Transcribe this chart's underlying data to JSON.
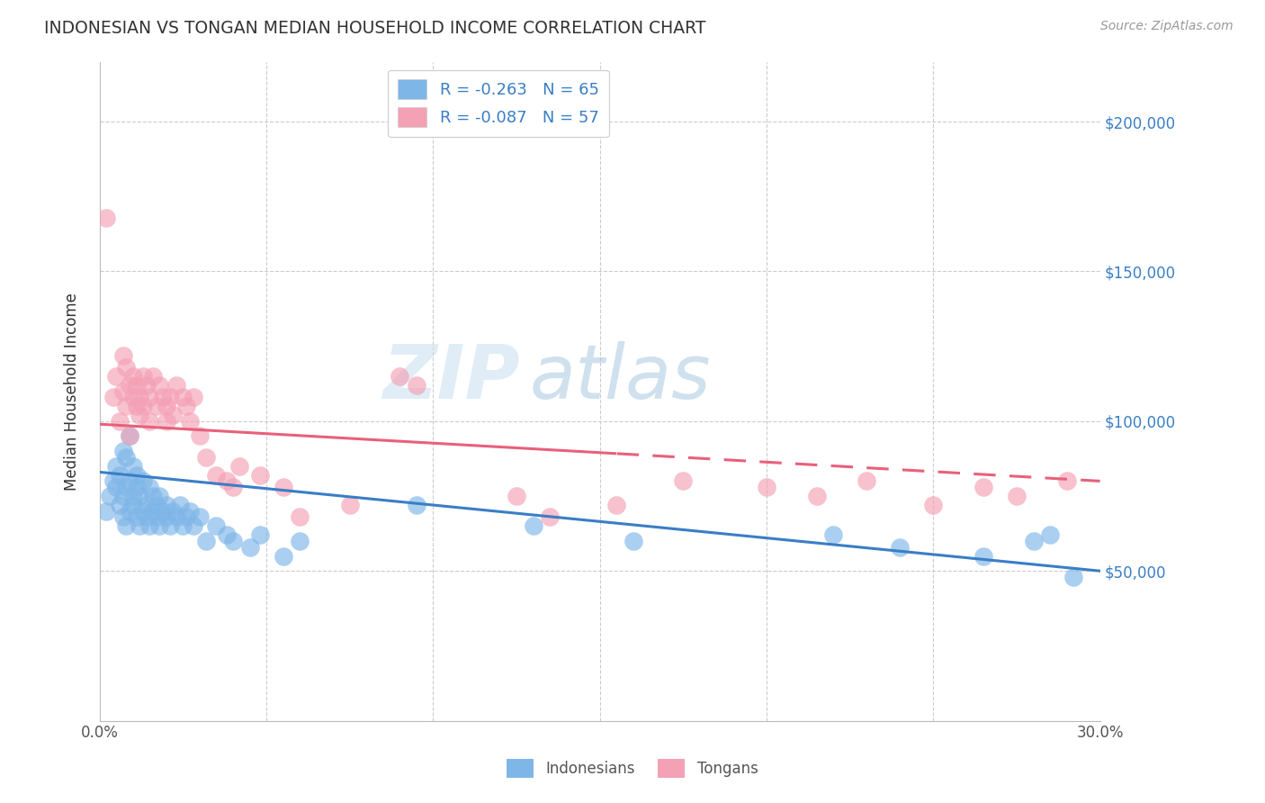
{
  "title": "INDONESIAN VS TONGAN MEDIAN HOUSEHOLD INCOME CORRELATION CHART",
  "source": "Source: ZipAtlas.com",
  "ylabel": "Median Household Income",
  "y_ticks": [
    0,
    50000,
    100000,
    150000,
    200000
  ],
  "y_tick_labels": [
    "",
    "$50,000",
    "$100,000",
    "$150,000",
    "$200,000"
  ],
  "x_ticks": [
    0.0,
    0.05,
    0.1,
    0.15,
    0.2,
    0.25,
    0.3
  ],
  "xlim": [
    0.0,
    0.3
  ],
  "ylim": [
    0,
    220000
  ],
  "blue_color": "#7EB6E8",
  "pink_color": "#F4A0B5",
  "blue_line_color": "#3A7EC6",
  "pink_line_color": "#E8607A",
  "legend_label_1": "R = -0.263   N = 65",
  "legend_label_2": "R = -0.087   N = 57",
  "watermark_zip": "ZIP",
  "watermark_atlas": "atlas",
  "pink_dash_split": 0.155,
  "blue_line_y0": 83000,
  "blue_line_y1": 50000,
  "pink_line_y0": 99000,
  "pink_line_y1": 80000,
  "indonesian_x": [
    0.002,
    0.003,
    0.004,
    0.005,
    0.005,
    0.006,
    0.006,
    0.007,
    0.007,
    0.007,
    0.008,
    0.008,
    0.008,
    0.009,
    0.009,
    0.009,
    0.01,
    0.01,
    0.01,
    0.011,
    0.011,
    0.011,
    0.012,
    0.012,
    0.013,
    0.013,
    0.014,
    0.014,
    0.015,
    0.015,
    0.016,
    0.016,
    0.017,
    0.017,
    0.018,
    0.018,
    0.019,
    0.02,
    0.02,
    0.021,
    0.022,
    0.023,
    0.024,
    0.025,
    0.026,
    0.027,
    0.028,
    0.03,
    0.032,
    0.035,
    0.038,
    0.04,
    0.045,
    0.048,
    0.055,
    0.06,
    0.095,
    0.13,
    0.16,
    0.22,
    0.24,
    0.265,
    0.28,
    0.285,
    0.292
  ],
  "indonesian_y": [
    70000,
    75000,
    80000,
    78000,
    85000,
    72000,
    82000,
    68000,
    75000,
    90000,
    65000,
    78000,
    88000,
    70000,
    80000,
    95000,
    72000,
    85000,
    75000,
    68000,
    78000,
    82000,
    65000,
    75000,
    70000,
    80000,
    72000,
    68000,
    78000,
    65000,
    70000,
    75000,
    68000,
    72000,
    65000,
    75000,
    70000,
    72000,
    68000,
    65000,
    70000,
    68000,
    72000,
    65000,
    68000,
    70000,
    65000,
    68000,
    60000,
    65000,
    62000,
    60000,
    58000,
    62000,
    55000,
    60000,
    72000,
    65000,
    60000,
    62000,
    58000,
    55000,
    60000,
    62000,
    48000
  ],
  "tongan_x": [
    0.002,
    0.004,
    0.005,
    0.006,
    0.007,
    0.007,
    0.008,
    0.008,
    0.009,
    0.009,
    0.01,
    0.01,
    0.011,
    0.011,
    0.012,
    0.012,
    0.013,
    0.013,
    0.014,
    0.015,
    0.015,
    0.016,
    0.017,
    0.018,
    0.019,
    0.02,
    0.02,
    0.021,
    0.022,
    0.023,
    0.025,
    0.026,
    0.027,
    0.028,
    0.03,
    0.032,
    0.035,
    0.038,
    0.04,
    0.042,
    0.048,
    0.055,
    0.06,
    0.075,
    0.09,
    0.095,
    0.125,
    0.135,
    0.155,
    0.175,
    0.2,
    0.215,
    0.23,
    0.25,
    0.265,
    0.275,
    0.29
  ],
  "tongan_y": [
    168000,
    108000,
    115000,
    100000,
    122000,
    110000,
    105000,
    118000,
    112000,
    95000,
    108000,
    115000,
    105000,
    112000,
    108000,
    102000,
    115000,
    105000,
    112000,
    108000,
    100000,
    115000,
    105000,
    112000,
    108000,
    105000,
    100000,
    108000,
    102000,
    112000,
    108000,
    105000,
    100000,
    108000,
    95000,
    88000,
    82000,
    80000,
    78000,
    85000,
    82000,
    78000,
    68000,
    72000,
    115000,
    112000,
    75000,
    68000,
    72000,
    80000,
    78000,
    75000,
    80000,
    72000,
    78000,
    75000,
    80000
  ]
}
